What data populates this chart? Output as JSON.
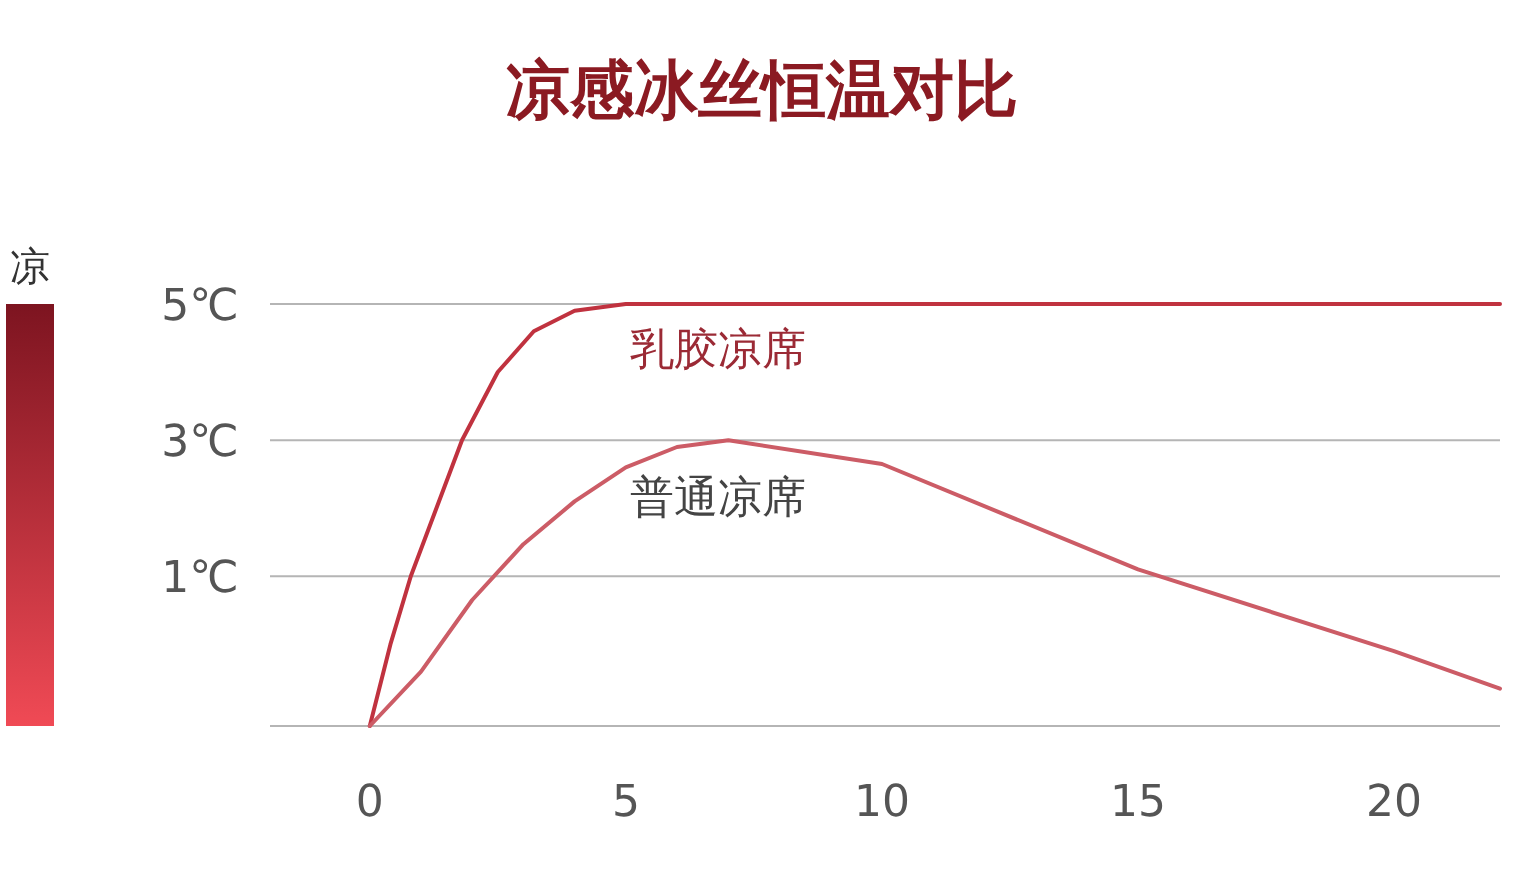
{
  "chart_data": {
    "type": "line",
    "title": "凉感冰丝恒温对比",
    "annotations": [
      "凉"
    ],
    "xlim": [
      -1.95,
      22.07
    ],
    "xticks": [
      0,
      5,
      10,
      15,
      20
    ],
    "ylim": [
      -1.2,
      5
    ],
    "yticks": [
      {
        "value": 5,
        "label": "5℃"
      },
      {
        "value": 3,
        "label": "3℃"
      },
      {
        "value": 1,
        "label": "1℃"
      }
    ],
    "grid": "y",
    "marker": "none",
    "series": [
      {
        "name": "乳胶凉席",
        "color": "#c0323f",
        "x": [
          0,
          0.4,
          0.8,
          1.3,
          1.8,
          2.5,
          3.2,
          4,
          5,
          22.07
        ],
        "values": [
          -1.2,
          0,
          1,
          2,
          3,
          4,
          4.6,
          4.9,
          5,
          5
        ]
      },
      {
        "name": "普通凉席",
        "color": "#cc5c66",
        "x": [
          0,
          1,
          2,
          3,
          4,
          5,
          6,
          7,
          10,
          15,
          20,
          22.07
        ],
        "values": [
          -1.2,
          -0.4,
          0.65,
          1.47,
          2.1,
          2.6,
          2.9,
          3,
          2.65,
          1.1,
          -0.1,
          -0.65
        ]
      }
    ]
  }
}
